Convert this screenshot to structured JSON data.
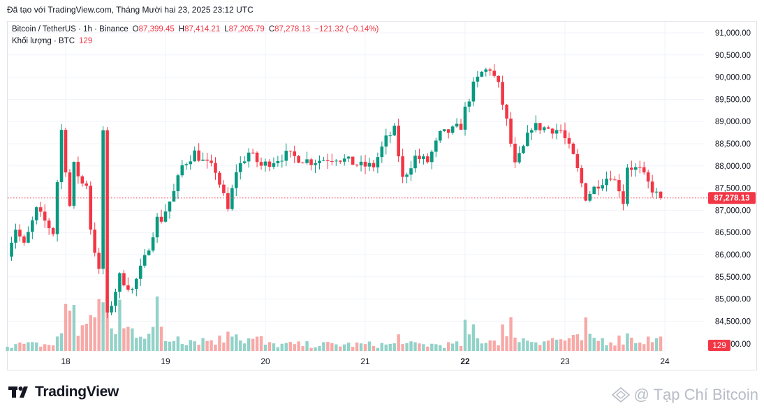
{
  "header_note": "Đã tạo với TradingView.com, Tháng Mười hai 23, 2025 23:12 UTC",
  "legend": {
    "symbol": "Bitcoin / TetherUS · 1h · Binance",
    "o_label": "O",
    "o_value": "87,399.45",
    "h_label": "H",
    "h_value": "87,414.21",
    "l_label": "L",
    "l_value": "87,205.79",
    "c_label": "C",
    "c_value": "87,278.13",
    "change": "−121.32 (−0.14%)",
    "volume_label": "Khối lượng · BTC",
    "volume_value": "129"
  },
  "price_badge": "87,278.13",
  "volume_badge": "129",
  "brand": {
    "name": "TradingView"
  },
  "watermark": {
    "text": "@ Tạp Chí Bitcoin"
  },
  "colors": {
    "up": "#089981",
    "down": "#f23645",
    "up_vol": "#92d2c8",
    "down_vol": "#f7a9a7",
    "grid": "#f0f3fa"
  },
  "chart_data": {
    "type": "candlestick",
    "title": "Bitcoin / TetherUS · 1h · Binance",
    "y_ticks": [
      91000,
      90500,
      90000,
      89500,
      89000,
      88500,
      88000,
      87500,
      87000,
      86500,
      86000,
      85500,
      85000,
      84500
    ],
    "y_tick_labels": [
      "91,000.00",
      "90,500.00",
      "90,000.00",
      "89,500.00",
      "89,000.00",
      "88,500.00",
      "88,000.00",
      "87,500.00",
      "87,000.00",
      "86,500.00",
      "86,000.00",
      "85,500.00",
      "85,000.00",
      "84,500.00"
    ],
    "volume_tick_label": "00.00",
    "x_ticks": [
      {
        "label": "18",
        "bold": false
      },
      {
        "label": "19",
        "bold": false
      },
      {
        "label": "20",
        "bold": false
      },
      {
        "label": "21",
        "bold": false
      },
      {
        "label": "22",
        "bold": true
      },
      {
        "label": "23",
        "bold": false
      },
      {
        "label": "24",
        "bold": false
      }
    ],
    "last_price": 87278.13,
    "ohlc_series": [
      {
        "x": "12-17",
        "anchors": [
          [
            0,
            86700
          ],
          [
            3,
            87400
          ],
          [
            4,
            89700
          ],
          [
            6,
            87200
          ],
          [
            8,
            86000
          ],
          [
            10,
            85800
          ],
          [
            13,
            86600
          ],
          [
            15,
            86200
          ],
          [
            18,
            87000
          ],
          [
            22,
            86500
          ],
          [
            26,
            87100
          ],
          [
            30,
            87600
          ],
          [
            34,
            88800
          ]
        ]
      },
      {
        "x": "12-18",
        "anchors": [
          [
            0,
            88800
          ],
          [
            2,
            88200
          ],
          [
            5,
            87600
          ],
          [
            7,
            86600
          ],
          [
            9,
            85600
          ],
          [
            11,
            84600
          ],
          [
            14,
            85500
          ],
          [
            17,
            85200
          ],
          [
            20,
            85900
          ],
          [
            23,
            86800
          ]
        ]
      },
      {
        "x": "12-19",
        "anchors": [
          [
            0,
            86800
          ],
          [
            3,
            87400
          ],
          [
            5,
            88000
          ],
          [
            8,
            88300
          ],
          [
            10,
            88100
          ],
          [
            13,
            87900
          ],
          [
            16,
            87000
          ],
          [
            18,
            87900
          ],
          [
            21,
            88300
          ],
          [
            24,
            88000
          ]
        ]
      },
      {
        "x": "12-20",
        "anchors": [
          [
            0,
            88000
          ],
          [
            6,
            88250
          ],
          [
            12,
            88100
          ],
          [
            18,
            88200
          ],
          [
            24,
            88000
          ]
        ]
      },
      {
        "x": "12-21",
        "anchors": [
          [
            0,
            88000
          ],
          [
            3,
            88000
          ],
          [
            6,
            88600
          ],
          [
            8,
            88800
          ],
          [
            10,
            87700
          ],
          [
            13,
            88200
          ],
          [
            16,
            88100
          ],
          [
            19,
            88700
          ],
          [
            22,
            88800
          ],
          [
            24,
            88900
          ]
        ]
      },
      {
        "x": "12-22",
        "anchors": [
          [
            0,
            89000
          ],
          [
            3,
            89800
          ],
          [
            5,
            90100
          ],
          [
            7,
            90200
          ],
          [
            9,
            89800
          ],
          [
            11,
            89000
          ],
          [
            13,
            88000
          ],
          [
            15,
            88400
          ],
          [
            17,
            88900
          ]
        ]
      },
      {
        "x": "12-23",
        "anchors": [
          [
            0,
            88800
          ],
          [
            3,
            88200
          ],
          [
            6,
            87300
          ],
          [
            9,
            87600
          ],
          [
            12,
            87800
          ],
          [
            14,
            87500
          ],
          [
            15,
            87200
          ],
          [
            16,
            88000
          ],
          [
            19,
            87900
          ],
          [
            21,
            87600
          ],
          [
            23,
            87350
          ],
          [
            24,
            87278
          ]
        ]
      }
    ],
    "volume_levels": [
      {
        "x": "12-17",
        "level": "low",
        "spike": "12-17 09:00"
      },
      {
        "x": "12-18",
        "level": "high",
        "spike": "12-18 19:00"
      },
      {
        "x": "12-19",
        "level": "medium"
      },
      {
        "x": "12-20",
        "level": "low"
      },
      {
        "x": "12-21",
        "level": "low"
      },
      {
        "x": "12-22",
        "level": "medium"
      },
      {
        "x": "12-23",
        "level": "medium"
      }
    ]
  }
}
